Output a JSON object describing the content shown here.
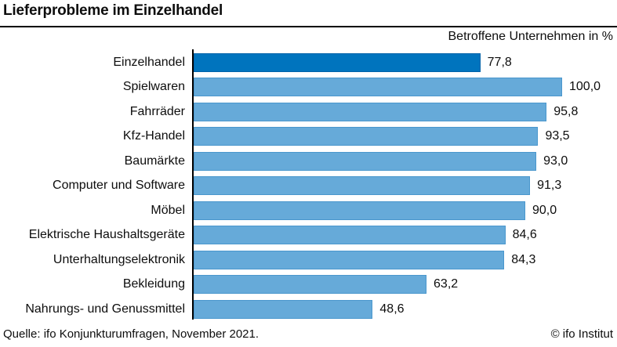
{
  "header": {
    "title": "Lieferprobleme im Einzelhandel",
    "subtitle": "Betroffene Unternehmen in %"
  },
  "footer": {
    "source": "Quelle: ifo Konjunkturumfragen, November 2021.",
    "credit": "© ifo Institut"
  },
  "colors": {
    "highlight_bar_fill": "#0074BE",
    "highlight_bar_border": "#0062A9",
    "bar_fill": "#66AAD9",
    "bar_border": "#4A97CD",
    "axis": "#000000",
    "text": "#0d0d0d",
    "background": "#ffffff"
  },
  "chart_data": {
    "type": "bar",
    "orientation": "horizontal",
    "title": "Lieferprobleme im Einzelhandel",
    "subtitle": "Betroffene Unternehmen in %",
    "xlabel": "Betroffene Unternehmen in %",
    "ylabel": "",
    "xlim": [
      0,
      100
    ],
    "grid": false,
    "legend": false,
    "categories": [
      "Einzelhandel",
      "Spielwaren",
      "Fahrräder",
      "Kfz-Handel",
      "Baumärkte",
      "Computer und Software",
      "Möbel",
      "Elektrische Haushaltsgeräte",
      "Unterhaltungselektronik",
      "Bekleidung",
      "Nahrungs- und Genussmittel"
    ],
    "values": [
      77.8,
      100.0,
      95.8,
      93.5,
      93.0,
      91.3,
      90.0,
      84.6,
      84.3,
      63.2,
      48.6
    ],
    "value_labels": [
      "77,8",
      "100,0",
      "95,8",
      "93,5",
      "93,0",
      "91,3",
      "90,0",
      "84,6",
      "84,3",
      "63,2",
      "48,6"
    ],
    "highlight_index": 0
  }
}
